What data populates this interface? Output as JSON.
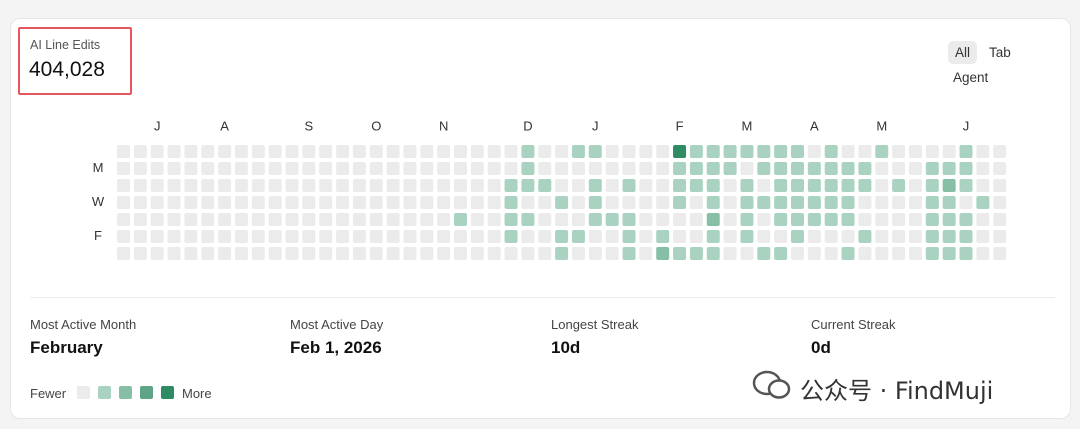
{
  "header": {
    "title": "AI Line Edits",
    "value": "404,028"
  },
  "tabs": [
    "All",
    "Tab",
    "Agent"
  ],
  "heatmap": {
    "month_labels": [
      null,
      null,
      "J",
      null,
      null,
      null,
      "A",
      null,
      null,
      null,
      null,
      "S",
      null,
      null,
      null,
      "O",
      null,
      null,
      null,
      "N",
      null,
      null,
      null,
      null,
      "D",
      null,
      null,
      null,
      "J",
      null,
      null,
      null,
      null,
      "F",
      null,
      null,
      null,
      "M",
      null,
      null,
      null,
      "A",
      null,
      null,
      null,
      "M",
      null,
      null,
      null,
      null,
      "J",
      null,
      null
    ],
    "row_labels": [
      null,
      "M",
      null,
      "W",
      null,
      "F",
      null
    ],
    "level_colors": [
      "#ebebeb",
      "#a9d3c0",
      "#86bfa6",
      "#5fa486",
      "#2e8b64"
    ],
    "rows": [
      [
        0,
        0,
        0,
        0,
        0,
        0,
        0,
        0,
        0,
        0,
        0,
        0,
        0,
        0,
        0,
        0,
        0,
        0,
        0,
        0,
        0,
        0,
        0,
        0,
        1,
        0,
        0,
        1,
        1,
        0,
        0,
        0,
        0,
        4,
        1,
        1,
        1,
        1,
        1,
        1,
        1,
        0,
        1,
        0,
        0,
        1,
        0,
        0,
        0,
        0,
        1,
        0,
        0
      ],
      [
        0,
        0,
        0,
        0,
        0,
        0,
        0,
        0,
        0,
        0,
        0,
        0,
        0,
        0,
        0,
        0,
        0,
        0,
        0,
        0,
        0,
        0,
        0,
        0,
        1,
        0,
        0,
        0,
        0,
        0,
        0,
        0,
        0,
        1,
        1,
        1,
        1,
        0,
        1,
        1,
        1,
        1,
        1,
        1,
        1,
        0,
        0,
        0,
        1,
        1,
        1,
        0,
        0
      ],
      [
        0,
        0,
        0,
        0,
        0,
        0,
        0,
        0,
        0,
        0,
        0,
        0,
        0,
        0,
        0,
        0,
        0,
        0,
        0,
        0,
        0,
        0,
        0,
        1,
        1,
        1,
        0,
        0,
        1,
        0,
        1,
        0,
        0,
        1,
        1,
        1,
        0,
        1,
        0,
        1,
        1,
        1,
        1,
        1,
        1,
        0,
        1,
        0,
        1,
        2,
        1,
        0,
        0
      ],
      [
        0,
        0,
        0,
        0,
        0,
        0,
        0,
        0,
        0,
        0,
        0,
        0,
        0,
        0,
        0,
        0,
        0,
        0,
        0,
        0,
        0,
        0,
        0,
        1,
        0,
        0,
        1,
        0,
        1,
        0,
        0,
        0,
        0,
        1,
        0,
        1,
        0,
        1,
        1,
        1,
        1,
        1,
        1,
        1,
        0,
        0,
        0,
        0,
        1,
        1,
        0,
        1,
        0
      ],
      [
        0,
        0,
        0,
        0,
        0,
        0,
        0,
        0,
        0,
        0,
        0,
        0,
        0,
        0,
        0,
        0,
        0,
        0,
        0,
        0,
        1,
        0,
        0,
        1,
        1,
        0,
        0,
        0,
        1,
        1,
        1,
        0,
        0,
        0,
        0,
        2,
        0,
        1,
        0,
        1,
        1,
        1,
        1,
        1,
        0,
        0,
        0,
        0,
        1,
        1,
        1,
        0,
        0
      ],
      [
        0,
        0,
        0,
        0,
        0,
        0,
        0,
        0,
        0,
        0,
        0,
        0,
        0,
        0,
        0,
        0,
        0,
        0,
        0,
        0,
        0,
        0,
        0,
        1,
        0,
        0,
        1,
        1,
        0,
        0,
        1,
        0,
        1,
        0,
        0,
        1,
        0,
        1,
        0,
        0,
        1,
        0,
        0,
        0,
        1,
        0,
        0,
        0,
        1,
        1,
        1,
        0,
        0
      ],
      [
        0,
        0,
        0,
        0,
        0,
        0,
        0,
        0,
        0,
        0,
        0,
        0,
        0,
        0,
        0,
        0,
        0,
        0,
        0,
        0,
        0,
        0,
        0,
        0,
        0,
        0,
        1,
        0,
        0,
        0,
        1,
        0,
        2,
        1,
        1,
        1,
        0,
        0,
        1,
        1,
        0,
        0,
        0,
        1,
        0,
        0,
        0,
        0,
        1,
        1,
        1,
        0,
        0
      ]
    ]
  },
  "stats": [
    {
      "label": "Most Active Month",
      "value": "February"
    },
    {
      "label": "Most Active Day",
      "value": "Feb 1, 2026"
    },
    {
      "label": "Longest Streak",
      "value": "10d"
    },
    {
      "label": "Current Streak",
      "value": "0d"
    }
  ],
  "legend": {
    "fewer": "Fewer",
    "more": "More",
    "levels": [
      0,
      1,
      2,
      3,
      4
    ]
  },
  "watermark": "公众号 · FindMuji"
}
